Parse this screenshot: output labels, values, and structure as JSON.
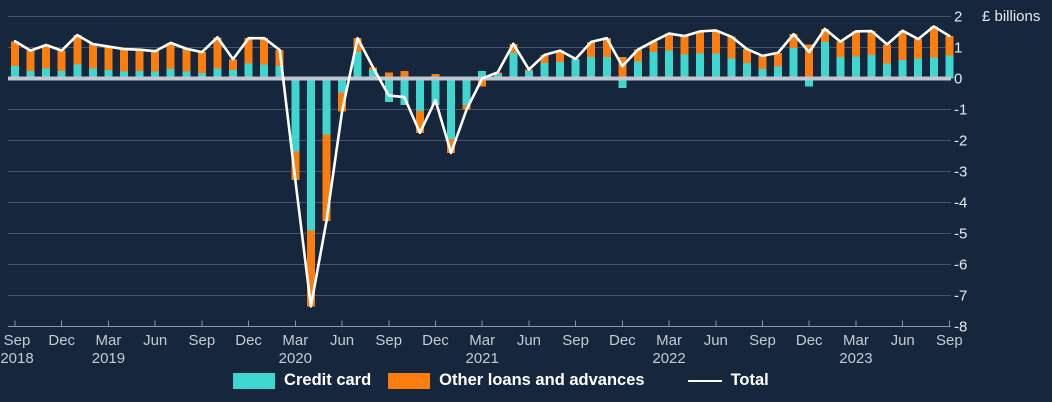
{
  "chart_data": {
    "type": "bar",
    "subtype": "stacked-bars-with-total-line",
    "title": "",
    "unit_label": "£ billions",
    "frequency": "monthly",
    "x_start": "Sep 2018",
    "x_end": "Sep 2023",
    "ylim": [
      -8,
      2
    ],
    "grid": true,
    "legend_position": "bottom",
    "y_ticks": [
      2,
      1,
      0,
      -1,
      -2,
      -3,
      -4,
      -5,
      -6,
      -7,
      -8
    ],
    "x_ticks": [
      {
        "month": "Sep",
        "year": "2018"
      },
      {
        "month": "Dec",
        "year": ""
      },
      {
        "month": "Mar",
        "year": "2019"
      },
      {
        "month": "Jun",
        "year": ""
      },
      {
        "month": "Sep",
        "year": ""
      },
      {
        "month": "Dec",
        "year": ""
      },
      {
        "month": "Mar",
        "year": "2020"
      },
      {
        "month": "Jun",
        "year": ""
      },
      {
        "month": "Sep",
        "year": ""
      },
      {
        "month": "Dec",
        "year": ""
      },
      {
        "month": "Mar",
        "year": "2021"
      },
      {
        "month": "Jun",
        "year": ""
      },
      {
        "month": "Sep",
        "year": ""
      },
      {
        "month": "Dec",
        "year": ""
      },
      {
        "month": "Mar",
        "year": "2022"
      },
      {
        "month": "Jun",
        "year": ""
      },
      {
        "month": "Sep",
        "year": ""
      },
      {
        "month": "Dec",
        "year": ""
      },
      {
        "month": "Mar",
        "year": "2023"
      },
      {
        "month": "Jun",
        "year": ""
      },
      {
        "month": "Sep",
        "year": ""
      }
    ],
    "months": [
      "2018-09",
      "2018-10",
      "2018-11",
      "2018-12",
      "2019-01",
      "2019-02",
      "2019-03",
      "2019-04",
      "2019-05",
      "2019-06",
      "2019-07",
      "2019-08",
      "2019-09",
      "2019-10",
      "2019-11",
      "2019-12",
      "2020-01",
      "2020-02",
      "2020-03",
      "2020-04",
      "2020-05",
      "2020-06",
      "2020-07",
      "2020-08",
      "2020-09",
      "2020-10",
      "2020-11",
      "2020-12",
      "2021-01",
      "2021-02",
      "2021-03",
      "2021-04",
      "2021-05",
      "2021-06",
      "2021-07",
      "2021-08",
      "2021-09",
      "2021-10",
      "2021-11",
      "2021-12",
      "2022-01",
      "2022-02",
      "2022-03",
      "2022-04",
      "2022-05",
      "2022-06",
      "2022-07",
      "2022-08",
      "2022-09",
      "2022-10",
      "2022-11",
      "2022-12",
      "2023-01",
      "2023-02",
      "2023-03",
      "2023-04",
      "2023-05",
      "2023-06",
      "2023-07",
      "2023-08",
      "2023-09"
    ],
    "series": [
      {
        "name": "Credit card",
        "type": "bar",
        "color": "#40D6D0",
        "values": [
          0.4,
          0.25,
          0.33,
          0.25,
          0.45,
          0.33,
          0.28,
          0.23,
          0.25,
          0.23,
          0.3,
          0.23,
          0.18,
          0.33,
          0.28,
          0.48,
          0.45,
          0.4,
          -2.35,
          -4.9,
          -1.8,
          -0.45,
          0.85,
          0.28,
          -0.75,
          -0.85,
          -1.05,
          -0.85,
          -1.95,
          -0.85,
          0.25,
          0.14,
          0.82,
          0.24,
          0.5,
          0.54,
          0.61,
          0.7,
          0.7,
          -0.3,
          0.55,
          0.85,
          0.9,
          0.77,
          0.8,
          0.8,
          0.65,
          0.5,
          0.3,
          0.39,
          0.98,
          -0.25,
          1.18,
          0.7,
          0.71,
          0.76,
          0.49,
          0.6,
          0.65,
          0.68,
          0.75
        ]
      },
      {
        "name": "Other loans and advances",
        "type": "bar",
        "color": "#FA7D0E",
        "values": [
          0.8,
          0.65,
          0.75,
          0.65,
          0.95,
          0.78,
          0.75,
          0.72,
          0.68,
          0.65,
          0.85,
          0.73,
          0.67,
          1.0,
          0.34,
          0.82,
          0.85,
          0.52,
          -0.92,
          -2.45,
          -2.8,
          -0.62,
          0.45,
          0.07,
          0.2,
          0.25,
          -0.7,
          0.15,
          -0.45,
          -0.15,
          -0.25,
          0.06,
          0.3,
          0.05,
          0.26,
          0.36,
          0.02,
          0.48,
          0.6,
          0.7,
          0.38,
          0.35,
          0.55,
          0.6,
          0.72,
          0.75,
          0.7,
          0.45,
          0.43,
          0.44,
          0.45,
          1.1,
          0.42,
          0.49,
          0.81,
          0.77,
          0.61,
          0.94,
          0.62,
          1.0,
          0.62
        ]
      },
      {
        "name": "Total",
        "type": "line",
        "color": "#FFFFFF",
        "values": [
          1.2,
          0.9,
          1.08,
          0.9,
          1.4,
          1.11,
          1.03,
          0.95,
          0.93,
          0.88,
          1.15,
          0.96,
          0.85,
          1.33,
          0.62,
          1.3,
          1.3,
          0.92,
          -3.27,
          -7.35,
          -4.6,
          -1.07,
          1.3,
          0.35,
          -0.55,
          -0.6,
          -1.75,
          -0.7,
          -2.4,
          -1.0,
          0.0,
          0.2,
          1.12,
          0.29,
          0.76,
          0.9,
          0.63,
          1.18,
          1.3,
          0.4,
          0.93,
          1.2,
          1.45,
          1.37,
          1.52,
          1.55,
          1.35,
          0.95,
          0.73,
          0.83,
          1.43,
          0.85,
          1.6,
          1.19,
          1.52,
          1.53,
          1.1,
          1.54,
          1.27,
          1.68,
          1.37
        ]
      }
    ]
  },
  "axis": {
    "unit_label": "£ billions"
  },
  "legend": {
    "credit_card": "Credit card",
    "other_loans": "Other loans and advances",
    "total": "Total"
  },
  "colors": {
    "background": "#16263C",
    "credit_card": "#40D6D0",
    "other_loans": "#FA7D0E",
    "total_line": "#FFFFFF",
    "zero_line": "#BFC6CF",
    "gridline": "#46536A",
    "axis_line": "#8D95A5",
    "x_label": "#C5CBD5",
    "y_label": "#E6EAF0"
  }
}
